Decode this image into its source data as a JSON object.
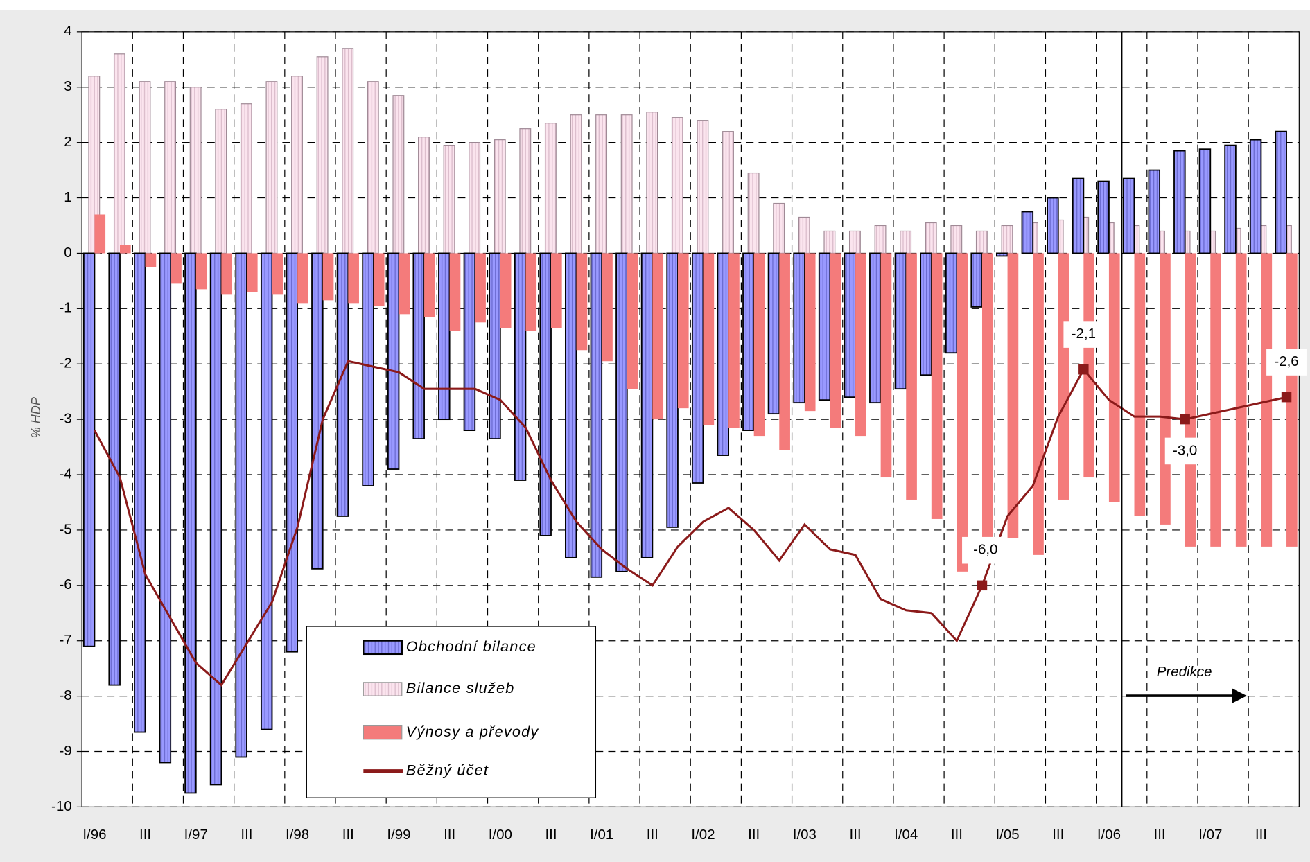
{
  "chart_data": {
    "type": "bar",
    "y_label": "% HDP",
    "categories": [
      "I/96",
      null,
      "III",
      null,
      "I/97",
      null,
      "III",
      null,
      "I/98",
      null,
      "III",
      null,
      "I/99",
      null,
      "III",
      null,
      "I/00",
      null,
      "III",
      null,
      "I/01",
      null,
      "III",
      null,
      "I/02",
      null,
      "III",
      null,
      "I/03",
      null,
      "III",
      null,
      "I/04",
      null,
      "III",
      null,
      "I/05",
      null,
      "III",
      null,
      "I/06",
      null,
      "III",
      null,
      "I/07",
      null,
      "III",
      null
    ],
    "series": [
      {
        "name": "Obchodní bilance",
        "type": "bar",
        "color": "#9999ff",
        "values": [
          -7.1,
          -7.8,
          -8.65,
          -9.2,
          -9.75,
          -9.6,
          -9.1,
          -8.6,
          -7.2,
          -5.7,
          -4.75,
          -4.2,
          -3.9,
          -3.35,
          -3.0,
          -3.2,
          -3.35,
          -4.1,
          -5.1,
          -5.5,
          -5.85,
          -5.75,
          -5.5,
          -4.95,
          -4.15,
          -3.65,
          -3.2,
          -2.9,
          -2.7,
          -2.65,
          -2.6,
          -2.7,
          -2.45,
          -2.2,
          -1.8,
          -0.97,
          -0.05,
          0.75,
          1.0,
          1.35,
          1.3,
          1.35,
          1.5,
          1.85,
          1.88,
          1.95,
          2.05,
          2.2
        ]
      },
      {
        "name": "Bilance služeb",
        "type": "bar",
        "color": "#fbe4ee",
        "values": [
          3.2,
          3.6,
          3.1,
          3.1,
          3.0,
          2.6,
          2.7,
          3.1,
          3.2,
          3.55,
          3.7,
          3.1,
          2.85,
          2.1,
          1.95,
          2.0,
          2.05,
          2.25,
          2.35,
          2.5,
          2.5,
          2.5,
          2.55,
          2.45,
          2.4,
          2.2,
          1.45,
          0.9,
          0.65,
          0.4,
          0.4,
          0.5,
          0.4,
          0.55,
          0.5,
          0.4,
          0.5,
          0.55,
          0.6,
          0.65,
          0.55,
          0.5,
          0.4,
          0.4,
          0.4,
          0.45,
          0.5,
          0.5
        ]
      },
      {
        "name": "Výnosy a převody",
        "type": "bar",
        "color": "#f47b7b",
        "values": [
          0.7,
          0.15,
          -0.25,
          -0.55,
          -0.65,
          -0.75,
          -0.7,
          -0.75,
          -0.9,
          -0.85,
          -0.9,
          -0.95,
          -1.1,
          -1.15,
          -1.4,
          -1.25,
          -1.35,
          -1.4,
          -1.35,
          -1.75,
          -1.95,
          -2.45,
          -3.0,
          -2.8,
          -3.1,
          -3.15,
          -3.3,
          -3.55,
          -2.85,
          -3.15,
          -3.3,
          -4.05,
          -4.45,
          -4.8,
          -5.75,
          -5.5,
          -5.15,
          -5.45,
          -4.45,
          -4.05,
          -4.5,
          -4.75,
          -4.9,
          -5.3,
          -5.3,
          -5.3,
          -5.3,
          -5.3
        ]
      },
      {
        "name": "Běžný účet",
        "type": "line",
        "color": "#8b1a1a",
        "values": [
          -3.2,
          -4.05,
          -5.8,
          -6.6,
          -7.4,
          -7.8,
          -7.05,
          -6.3,
          -4.95,
          -3.0,
          -1.95,
          -2.05,
          -2.15,
          -2.45,
          -2.45,
          -2.45,
          -2.65,
          -3.15,
          -4.1,
          -4.85,
          -5.35,
          -5.7,
          -6.0,
          -5.3,
          -4.85,
          -4.6,
          -5.0,
          -5.55,
          -4.9,
          -5.35,
          -5.45,
          -6.25,
          -6.45,
          -6.5,
          -7.0,
          -6.0,
          -4.75,
          -4.2,
          -2.95,
          -2.1,
          -2.65,
          -2.95,
          -2.95,
          -3.0,
          -2.9,
          -2.8,
          -2.7,
          -2.6
        ],
        "value_labels": [
          null,
          null,
          null,
          null,
          null,
          null,
          null,
          null,
          null,
          null,
          null,
          null,
          null,
          null,
          null,
          null,
          null,
          null,
          null,
          null,
          null,
          null,
          null,
          null,
          null,
          null,
          null,
          null,
          null,
          null,
          null,
          null,
          null,
          null,
          null,
          "-6,0",
          null,
          null,
          null,
          "-2,1",
          null,
          null,
          null,
          "-3,0",
          null,
          null,
          null,
          "-2,6"
        ]
      }
    ],
    "ylim": [
      -10,
      4
    ],
    "yticks": [
      -10,
      -9,
      -8,
      -7,
      -6,
      -5,
      -4,
      -3,
      -2,
      -1,
      0,
      1,
      2,
      3,
      4
    ],
    "grid": true,
    "legend": "bottom-left",
    "annotation": "Predikce"
  }
}
